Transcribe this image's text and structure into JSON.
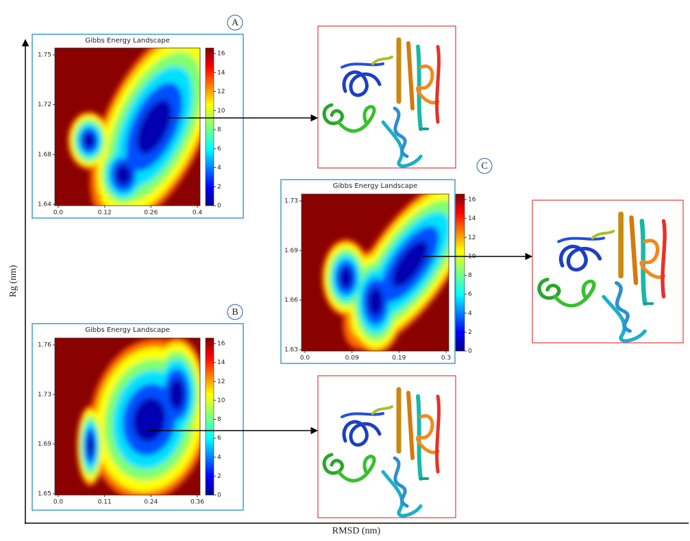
{
  "axes": {
    "y_label": "Rg (nm)",
    "x_label": "RMSD (nm)"
  },
  "panels": [
    {
      "label": "A",
      "title": "Gibbs Energy Landscape",
      "yticks": [
        "1.75",
        "1.72",
        "1.68",
        "1.64"
      ],
      "xticks": [
        "0.0",
        "0.12",
        "0.26",
        "0.4"
      ],
      "colorbar_ticks": [
        "0",
        "2",
        "4",
        "6",
        "8",
        "10",
        "12",
        "14",
        "16"
      ]
    },
    {
      "label": "B",
      "title": "Gibbs Energy Landscape",
      "yticks": [
        "1.76",
        "1.73",
        "1.69",
        "1.65"
      ],
      "xticks": [
        "0.0",
        "0.11",
        "0.24",
        "0.36"
      ],
      "colorbar_ticks": [
        "0",
        "2",
        "4",
        "6",
        "8",
        "10",
        "12",
        "14",
        "16"
      ]
    },
    {
      "label": "C",
      "title": "Gibbs Energy Landscape",
      "yticks": [
        "1.73",
        "1.69",
        "1.66",
        "1.63"
      ],
      "xticks": [
        "0.0",
        "0.09",
        "0.19",
        "0.3"
      ],
      "colorbar_ticks": [
        "0",
        "2",
        "4",
        "6",
        "8",
        "10",
        "12",
        "14",
        "16"
      ]
    }
  ]
}
